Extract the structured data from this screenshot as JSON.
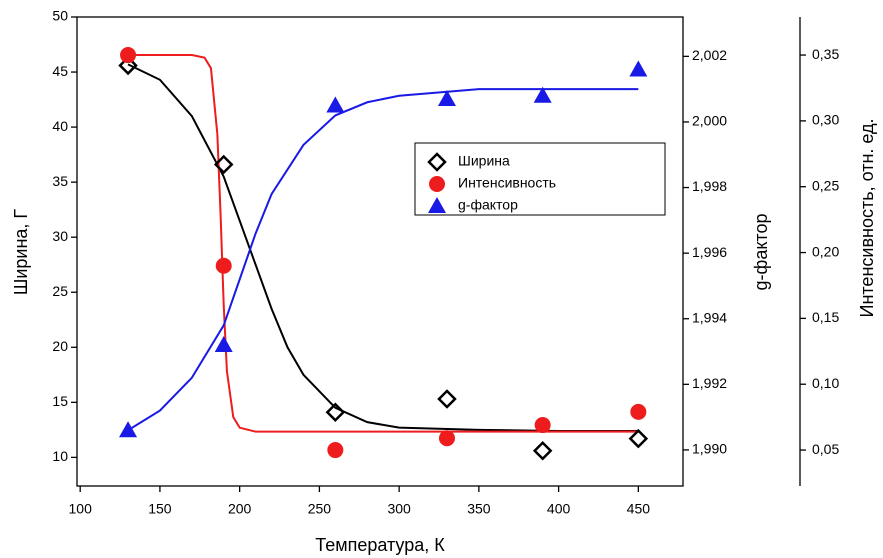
{
  "chart_data": {
    "type": "scatter",
    "x_label": "Температура, К",
    "y_label": "Ширина, Г",
    "y2_label": "g-фактор",
    "y3_label": "Интенсивность, отн. ед.",
    "xlim": [
      98,
      478
    ],
    "xticks": [
      100,
      150,
      200,
      250,
      300,
      350,
      400,
      450
    ],
    "ylim": [
      7.4,
      50
    ],
    "yticks": [
      10,
      15,
      20,
      25,
      30,
      35,
      40,
      45,
      50
    ],
    "y2lim": [
      1.9889,
      2.0032
    ],
    "y2ticks": [
      {
        "value": 1.99,
        "label": "1,990"
      },
      {
        "value": 1.992,
        "label": "1,992"
      },
      {
        "value": 1.994,
        "label": "1,994"
      },
      {
        "value": 1.996,
        "label": "1,996"
      },
      {
        "value": 1.998,
        "label": "1,998"
      },
      {
        "value": 2.0,
        "label": "2,000"
      },
      {
        "value": 2.002,
        "label": "2,002"
      }
    ],
    "y3lim": [
      0.0227,
      0.3789
    ],
    "y3ticks": [
      {
        "value": 0.05,
        "label": "0,05"
      },
      {
        "value": 0.1,
        "label": "0,10"
      },
      {
        "value": 0.15,
        "label": "0,15"
      },
      {
        "value": 0.2,
        "label": "0,20"
      },
      {
        "value": 0.25,
        "label": "0,25"
      },
      {
        "value": 0.3,
        "label": "0,30"
      },
      {
        "value": 0.35,
        "label": "0,35"
      }
    ],
    "x": [
      130,
      190,
      260,
      330,
      390,
      450
    ],
    "series": [
      {
        "name": "Ширина",
        "color": "#000000",
        "marker": "diamond",
        "axis": "y",
        "values": [
          45.6,
          36.6,
          14.1,
          15.3,
          10.6,
          11.7
        ],
        "fit": {
          "x": [
            130,
            150,
            170,
            190,
            200,
            210,
            220,
            230,
            240,
            260,
            280,
            300,
            350,
            400,
            450
          ],
          "values": [
            45.7,
            44.3,
            41.0,
            35.5,
            31.5,
            27.5,
            23.5,
            20.0,
            17.5,
            14.5,
            13.2,
            12.7,
            12.5,
            12.4,
            12.4
          ]
        }
      },
      {
        "name": "Интенсивность",
        "color": "#ee1c1c",
        "marker": "circle",
        "axis": "y3",
        "values": [
          0.35,
          0.19,
          0.05,
          0.059,
          0.069,
          0.079
        ],
        "fit": {
          "x": [
            130,
            170,
            178,
            182,
            186,
            188,
            190,
            192,
            196,
            200,
            210,
            260,
            450
          ],
          "values": [
            0.35,
            0.35,
            0.348,
            0.34,
            0.29,
            0.23,
            0.16,
            0.11,
            0.075,
            0.067,
            0.064,
            0.064,
            0.064
          ]
        }
      },
      {
        "name": "g-фактор",
        "color": "#1a1ae6",
        "marker": "triangle",
        "axis": "y2",
        "values": [
          1.9906,
          1.9932,
          2.0005,
          2.0007,
          2.0008,
          2.0016
        ],
        "fit": {
          "x": [
            130,
            150,
            170,
            190,
            200,
            210,
            220,
            240,
            260,
            280,
            300,
            350,
            450
          ],
          "values": [
            1.9906,
            1.9912,
            1.9922,
            1.9938,
            1.9952,
            1.9966,
            1.9978,
            1.9993,
            2.0002,
            2.0006,
            2.0008,
            2.001,
            2.001
          ]
        }
      }
    ],
    "legend": "upper-right"
  }
}
